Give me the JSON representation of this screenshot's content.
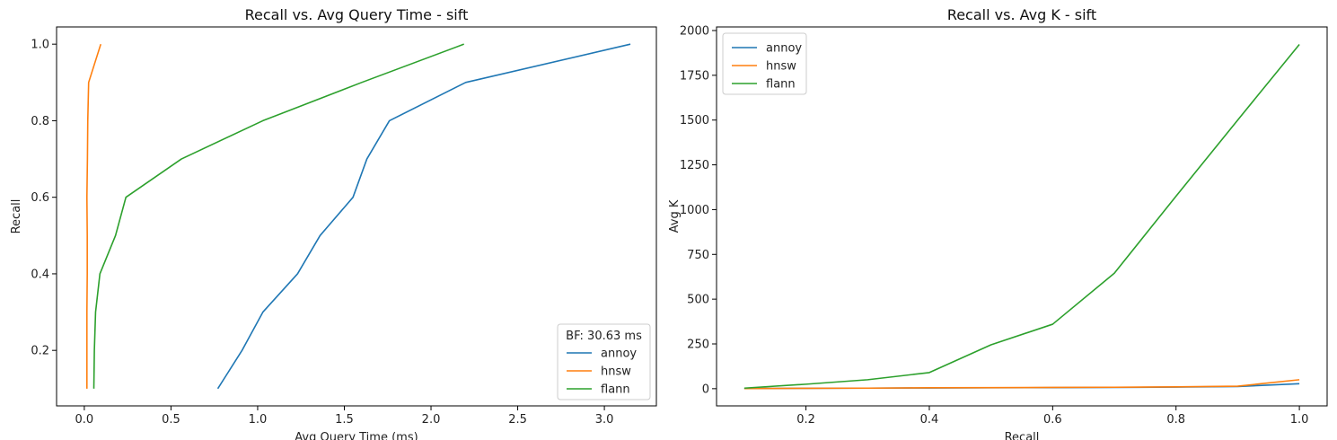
{
  "chart_data": [
    {
      "type": "line",
      "title": "Recall vs. Avg Query Time - sift",
      "xlabel": "Avg Query Time (ms)",
      "ylabel": "Recall",
      "xlim": [
        -0.16,
        3.3
      ],
      "ylim": [
        0.055,
        1.045
      ],
      "xticks": [
        0.0,
        0.5,
        1.0,
        1.5,
        2.0,
        2.5,
        3.0
      ],
      "xtick_labels": [
        "0.0",
        "0.5",
        "1.0",
        "1.5",
        "2.0",
        "2.5",
        "3.0"
      ],
      "yticks": [
        0.2,
        0.4,
        0.6,
        0.8,
        1.0
      ],
      "ytick_labels": [
        "0.2",
        "0.4",
        "0.6",
        "0.8",
        "1.0"
      ],
      "grid": false,
      "legend": {
        "placement": "lower-right",
        "title": "BF: 30.63 ms"
      },
      "series": [
        {
          "name": "annoy",
          "color": "#1f77b4",
          "points": [
            [
              0.77,
              0.1
            ],
            [
              0.91,
              0.2
            ],
            [
              1.03,
              0.3
            ],
            [
              1.23,
              0.4
            ],
            [
              1.36,
              0.5
            ],
            [
              1.55,
              0.6
            ],
            [
              1.63,
              0.7
            ],
            [
              1.76,
              0.8
            ],
            [
              2.2,
              0.9
            ],
            [
              3.15,
              1.0
            ]
          ]
        },
        {
          "name": "hnsw",
          "color": "#ff7f0e",
          "points": [
            [
              0.015,
              0.1
            ],
            [
              0.015,
              0.2
            ],
            [
              0.015,
              0.3
            ],
            [
              0.017,
              0.4
            ],
            [
              0.017,
              0.5
            ],
            [
              0.015,
              0.6
            ],
            [
              0.018,
              0.7
            ],
            [
              0.02,
              0.8
            ],
            [
              0.025,
              0.9
            ],
            [
              0.095,
              1.0
            ]
          ]
        },
        {
          "name": "flann",
          "color": "#2ca02c",
          "points": [
            [
              0.055,
              0.1
            ],
            [
              0.058,
              0.2
            ],
            [
              0.065,
              0.3
            ],
            [
              0.09,
              0.4
            ],
            [
              0.18,
              0.5
            ],
            [
              0.24,
              0.6
            ],
            [
              0.56,
              0.7
            ],
            [
              1.03,
              0.8
            ],
            [
              1.6,
              0.9
            ],
            [
              2.19,
              1.0
            ]
          ]
        }
      ]
    },
    {
      "type": "line",
      "title": "Recall vs. Avg K - sift",
      "xlabel": "Recall",
      "ylabel": "Avg K",
      "xlim": [
        0.055,
        1.045
      ],
      "ylim": [
        -96,
        2020
      ],
      "xticks": [
        0.2,
        0.4,
        0.6,
        0.8,
        1.0
      ],
      "xtick_labels": [
        "0.2",
        "0.4",
        "0.6",
        "0.8",
        "1.0"
      ],
      "yticks": [
        0,
        250,
        500,
        750,
        1000,
        1250,
        1500,
        1750,
        2000
      ],
      "ytick_labels": [
        "0",
        "250",
        "500",
        "750",
        "1000",
        "1250",
        "1500",
        "1750",
        "2000"
      ],
      "grid": false,
      "legend": {
        "placement": "top-left",
        "title": ""
      },
      "series": [
        {
          "name": "annoy",
          "color": "#1f77b4",
          "points": [
            [
              0.1,
              1
            ],
            [
              0.2,
              2
            ],
            [
              0.3,
              3
            ],
            [
              0.4,
              4
            ],
            [
              0.5,
              5
            ],
            [
              0.6,
              6
            ],
            [
              0.7,
              7
            ],
            [
              0.8,
              9
            ],
            [
              0.9,
              12
            ],
            [
              1.0,
              28
            ]
          ]
        },
        {
          "name": "hnsw",
          "color": "#ff7f0e",
          "points": [
            [
              0.1,
              1
            ],
            [
              0.2,
              2
            ],
            [
              0.3,
              3
            ],
            [
              0.4,
              5
            ],
            [
              0.5,
              6
            ],
            [
              0.6,
              7
            ],
            [
              0.7,
              8
            ],
            [
              0.8,
              10
            ],
            [
              0.9,
              14
            ],
            [
              1.0,
              50
            ]
          ]
        },
        {
          "name": "flann",
          "color": "#2ca02c",
          "points": [
            [
              0.1,
              3
            ],
            [
              0.2,
              25
            ],
            [
              0.3,
              50
            ],
            [
              0.4,
              90
            ],
            [
              0.5,
              245
            ],
            [
              0.6,
              360
            ],
            [
              0.7,
              645
            ],
            [
              0.8,
              1075
            ],
            [
              0.9,
              1500
            ],
            [
              1.0,
              1922
            ]
          ]
        }
      ]
    }
  ]
}
